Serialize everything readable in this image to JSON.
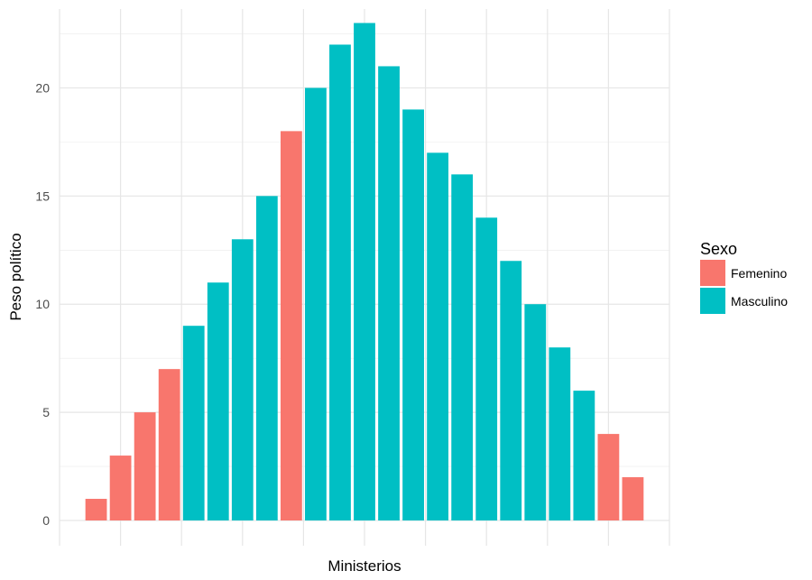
{
  "chart_data": {
    "type": "bar",
    "title": "",
    "xlabel": "Ministerios",
    "ylabel": "Peso político",
    "ylim": [
      0,
      23.5
    ],
    "y_ticks": [
      0,
      5,
      10,
      15,
      20
    ],
    "grid": true,
    "values": [
      1,
      3,
      5,
      7,
      9,
      11,
      13,
      15,
      18,
      20,
      22,
      23,
      21,
      19,
      17,
      16,
      14,
      12,
      10,
      8,
      6,
      4,
      2
    ],
    "group": [
      "Femenino",
      "Femenino",
      "Femenino",
      "Femenino",
      "Masculino",
      "Masculino",
      "Masculino",
      "Masculino",
      "Femenino",
      "Masculino",
      "Masculino",
      "Masculino",
      "Masculino",
      "Masculino",
      "Masculino",
      "Masculino",
      "Masculino",
      "Masculino",
      "Masculino",
      "Masculino",
      "Masculino",
      "Femenino",
      "Femenino"
    ],
    "legend": {
      "title": "Sexo",
      "position": "right",
      "entries": [
        {
          "name": "Femenino",
          "color": "#F8766D"
        },
        {
          "name": "Masculino",
          "color": "#00BFC4"
        }
      ]
    }
  }
}
